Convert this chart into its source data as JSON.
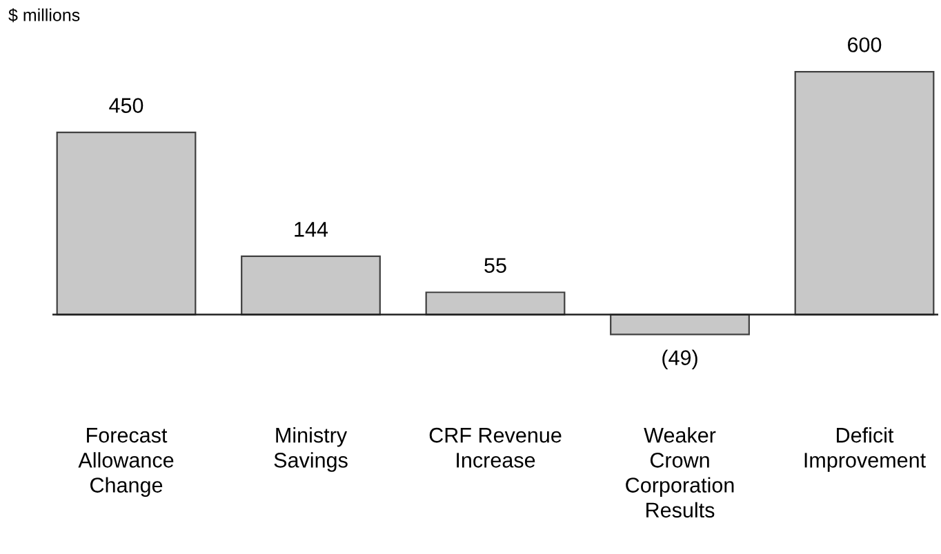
{
  "chart_data": {
    "type": "bar",
    "ylabel": "$ millions",
    "categories": [
      "Forecast\nAllowance\nChange",
      "Ministry\nSavings",
      "CRF Revenue\nIncrease",
      "Weaker\nCrown\nCorporation\nResults",
      "Deficit\nImprovement"
    ],
    "values": [
      450,
      144,
      55,
      -49,
      600
    ],
    "value_labels": [
      "450",
      "144",
      "55",
      "(49)",
      "600"
    ],
    "color": "#c8c8c8",
    "grid": false,
    "legend": false
  }
}
